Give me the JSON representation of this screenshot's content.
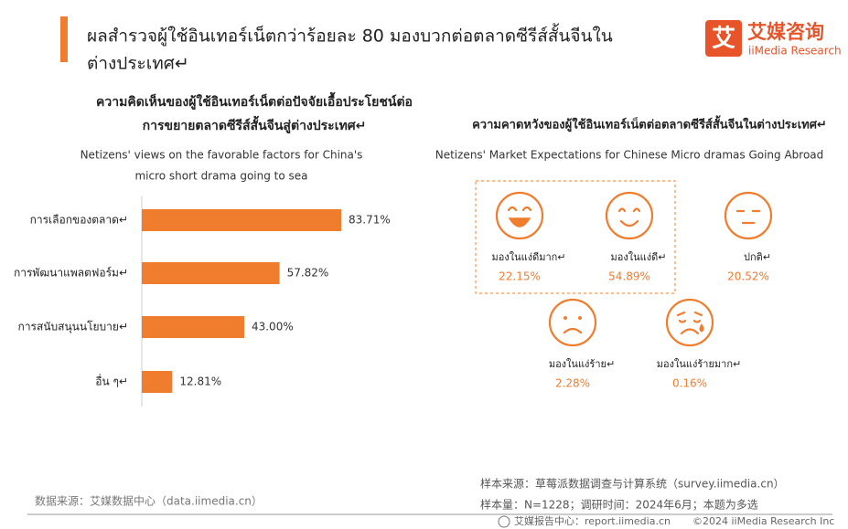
{
  "header": {
    "title_lines": [
      "ผลสำรวจผู้ใช้อินเทอร์เน็ตกว่าร้อยละ 80 มองบวกต่อตลาดซีรีส์สั้นจีนใน",
      "ต่างประเทศ↵"
    ],
    "logo_icon": "艾",
    "logo_name": "艾媒咨询",
    "logo_en": "iiMedia Research"
  },
  "chart_data": [
    {
      "type": "bar",
      "orientation": "horizontal",
      "title_lines": [
        "ความคิดเห็นของผู้ใช้อินเทอร์เน็ตต่อปัจจัยเอื้อประโยชน์ต่อ",
        "การขยายตลาดซีรีส์สั้นจีนสู่ต่างประเทศ↵"
      ],
      "subtitle_lines": [
        "Netizens' views on the favorable factors for China's",
        "micro short drama going to sea"
      ],
      "categories": [
        "การเลือกของตลาด↵",
        "การพัฒนาแพลตฟอร์ม↵",
        "การสนับสนุนนโยบาย↵",
        "อื่น ๆ↵"
      ],
      "values": [
        83.71,
        57.82,
        43.0,
        12.81
      ],
      "value_labels": [
        "83.71%",
        "57.82%",
        "43.00%",
        "12.81%"
      ],
      "color": "#f07c2e"
    },
    {
      "type": "emoji",
      "title": "ความคาดหวังของผู้ใช้อินเทอร์เน็ตต่อตลาดซีรีส์สั้นจีนในต่างประเทศ↵",
      "subtitle": "Netizens' Market Expectations for Chinese Micro dramas Going Abroad",
      "categories": [
        "มองในแง่ดีมาก↵",
        "มองในแง่ดี↵",
        "ปกติ↵",
        "มองในแง่ร้าย↵",
        "มองในแง่ร้ายมาก↵"
      ],
      "values": [
        22.15,
        54.89,
        20.52,
        2.28,
        0.16
      ],
      "value_labels": [
        "22.15%",
        "54.89%",
        "20.52%",
        "2.28%",
        "0.16%"
      ],
      "color": "#f07c2e"
    }
  ],
  "footer": {
    "source": "数据来源：艾媒数据中心（data.iimedia.cn）",
    "sample_source": "样本来源：草莓派数据调查与计算系统（survey.iimedia.cn）",
    "sample_size": "样本量：N=1228；调研时间：2024年6月；本题为多选",
    "report_center": "艾媒报告中心：report.iimedia.cn",
    "copyright": "©2024  iiMedia Research  Inc"
  }
}
